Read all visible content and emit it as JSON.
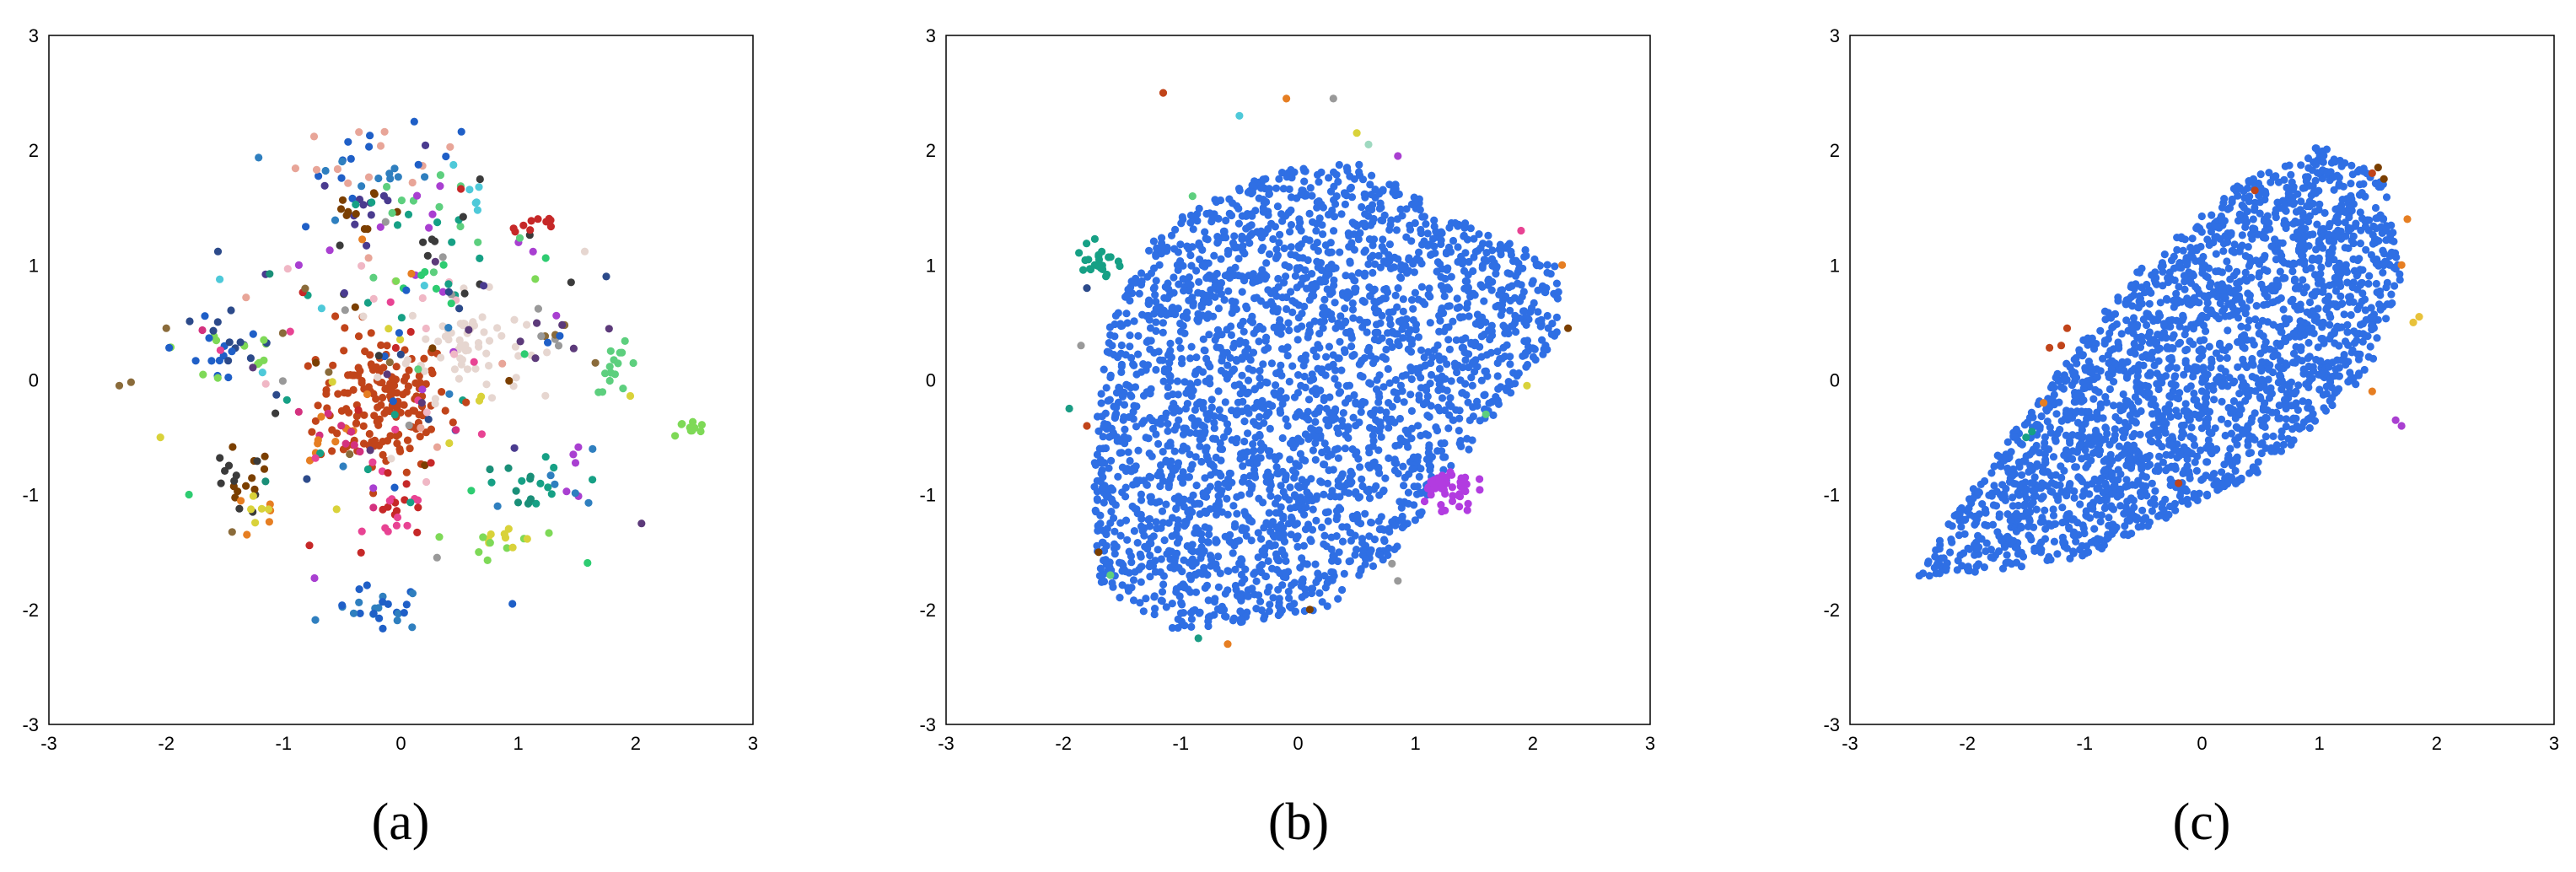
{
  "chart_data": [
    {
      "type": "scatter",
      "caption": "(a)",
      "xlim": [
        -3,
        3
      ],
      "ylim": [
        -3,
        3
      ],
      "xticks": [
        "-3",
        "-2",
        "-1",
        "0",
        "1",
        "2",
        "3"
      ],
      "yticks": [
        "-3",
        "-2",
        "-1",
        "0",
        "1",
        "2",
        "3"
      ],
      "grid": false,
      "legend": false,
      "colors": [
        "#c1441a",
        "#e8a598",
        "#4a3b8f",
        "#1f5fc7",
        "#2f7fbf",
        "#1a8f78",
        "#16a085",
        "#5dcf7e",
        "#7ed957",
        "#d9d23a",
        "#e67e22",
        "#d4317f",
        "#e84393",
        "#a93fd1",
        "#7b3f00",
        "#3b3b3b",
        "#2c4a8a",
        "#4ec9d9",
        "#e6d6d0",
        "#8a6b3a",
        "#999999",
        "#f0b7c5",
        "#2ecc71",
        "#c62828",
        "#5c3a7a"
      ],
      "clusters": [
        {
          "name": "",
          "cx": -0.15,
          "cy": -0.2,
          "sx": 0.28,
          "sy": 0.3,
          "n": 170,
          "color_idx": [
            0
          ]
        },
        {
          "name": "",
          "cx": 0.55,
          "cy": 0.3,
          "sx": 0.25,
          "sy": 0.22,
          "n": 60,
          "color_idx": [
            18
          ]
        },
        {
          "name": "",
          "cx": -0.2,
          "cy": 1.9,
          "sx": 0.35,
          "sy": 0.15,
          "n": 35,
          "color_idx": [
            1,
            3,
            4
          ]
        },
        {
          "name": "",
          "cx": -0.3,
          "cy": 1.5,
          "sx": 0.2,
          "sy": 0.15,
          "n": 20,
          "color_idx": [
            2,
            14
          ]
        },
        {
          "name": "",
          "cx": 0.2,
          "cy": 1.2,
          "sx": 0.5,
          "sy": 0.25,
          "n": 45,
          "color_idx": [
            6,
            13,
            15,
            7
          ]
        },
        {
          "name": "",
          "cx": 1.15,
          "cy": 1.35,
          "sx": 0.12,
          "sy": 0.05,
          "n": 10,
          "color_idx": [
            23
          ]
        },
        {
          "name": "",
          "cx": -1.45,
          "cy": 0.3,
          "sx": 0.25,
          "sy": 0.25,
          "n": 35,
          "color_idx": [
            16,
            3,
            8
          ]
        },
        {
          "name": "",
          "cx": -1.4,
          "cy": -0.9,
          "sx": 0.15,
          "sy": 0.15,
          "n": 20,
          "color_idx": [
            15,
            14
          ]
        },
        {
          "name": "",
          "cx": -1.2,
          "cy": -1.2,
          "sx": 0.12,
          "sy": 0.1,
          "n": 10,
          "color_idx": [
            9,
            10
          ]
        },
        {
          "name": "",
          "cx": -0.2,
          "cy": -2.0,
          "sx": 0.2,
          "sy": 0.1,
          "n": 25,
          "color_idx": [
            3,
            4
          ]
        },
        {
          "name": "",
          "cx": 0.0,
          "cy": -1.2,
          "sx": 0.15,
          "sy": 0.12,
          "n": 20,
          "color_idx": [
            23,
            12
          ]
        },
        {
          "name": "",
          "cx": 0.9,
          "cy": -1.4,
          "sx": 0.15,
          "sy": 0.1,
          "n": 15,
          "color_idx": [
            9,
            8
          ]
        },
        {
          "name": "",
          "cx": 1.1,
          "cy": -0.9,
          "sx": 0.12,
          "sy": 0.12,
          "n": 15,
          "color_idx": [
            5,
            6
          ]
        },
        {
          "name": "",
          "cx": 1.5,
          "cy": -0.8,
          "sx": 0.1,
          "sy": 0.15,
          "n": 10,
          "color_idx": [
            4,
            13
          ]
        },
        {
          "name": "",
          "cx": 1.85,
          "cy": 0.1,
          "sx": 0.1,
          "sy": 0.1,
          "n": 15,
          "color_idx": [
            7
          ]
        },
        {
          "name": "",
          "cx": 2.45,
          "cy": -0.42,
          "sx": 0.08,
          "sy": 0.05,
          "n": 10,
          "color_idx": [
            8
          ]
        },
        {
          "name": "",
          "cx": 0.65,
          "cy": 1.6,
          "sx": 0.05,
          "sy": 0.05,
          "n": 5,
          "color_idx": [
            17
          ]
        },
        {
          "name": "",
          "cx": 0.3,
          "cy": 0.85,
          "sx": 0.15,
          "sy": 0.1,
          "n": 10,
          "color_idx": [
            21,
            22
          ]
        },
        {
          "name": "",
          "cx": 1.3,
          "cy": 0.35,
          "sx": 0.15,
          "sy": 0.12,
          "n": 12,
          "color_idx": [
            20,
            19,
            24
          ]
        },
        {
          "name": "",
          "cx": -0.6,
          "cy": -0.5,
          "sx": 0.15,
          "sy": 0.12,
          "n": 15,
          "color_idx": [
            10,
            11
          ]
        }
      ],
      "scatter_extra": [
        {
          "x": -2.4,
          "y": -0.05,
          "c": 19
        },
        {
          "x": -2.3,
          "y": -0.02,
          "c": 19
        },
        {
          "x": -2.05,
          "y": -0.5,
          "c": 9
        },
        {
          "x": -2.0,
          "y": 0.45,
          "c": 19
        },
        {
          "x": 2.05,
          "y": -1.25,
          "c": 24
        },
        {
          "x": 0.95,
          "y": -1.95,
          "c": 3
        },
        {
          "x": 1.75,
          "y": 0.9,
          "c": 16
        },
        {
          "x": 1.45,
          "y": 0.85,
          "c": 15
        }
      ]
    },
    {
      "type": "scatter",
      "caption": "(b)",
      "xlim": [
        -3,
        3
      ],
      "ylim": [
        -3,
        3
      ],
      "xticks": [
        "-3",
        "-2",
        "-1",
        "0",
        "1",
        "2",
        "3"
      ],
      "yticks": [
        "-3",
        "-2",
        "-1",
        "0",
        "1",
        "2",
        "3"
      ],
      "grid": false,
      "legend": false,
      "main_color": "#2f6fe4",
      "main_region": [
        [
          -1.7,
          -1.8
        ],
        [
          -1.0,
          -2.2
        ],
        [
          0.3,
          -2.0
        ],
        [
          0.9,
          -1.4
        ],
        [
          1.6,
          -0.4
        ],
        [
          2.25,
          0.4
        ],
        [
          2.2,
          1.0
        ],
        [
          1.4,
          1.4
        ],
        [
          0.5,
          1.9
        ],
        [
          -0.3,
          1.8
        ],
        [
          -1.2,
          1.3
        ],
        [
          -1.6,
          0.5
        ],
        [
          -1.75,
          -0.6
        ]
      ],
      "main_n": 2600,
      "colors": [
        "#1a9c84",
        "#c1441a",
        "#e67e22",
        "#a93fd1",
        "#7b3f00",
        "#5dcf7e",
        "#999999",
        "#d9d23a",
        "#e84393",
        "#2c4a8a",
        "#9fd9c0",
        "#4ec9d9"
      ],
      "purple_blob": {
        "cx": 1.25,
        "cy": -0.95,
        "sx": 0.12,
        "sy": 0.1,
        "n": 45,
        "color": "#b23ce0"
      },
      "teal_blob": {
        "cx": -1.7,
        "cy": 1.05,
        "sx": 0.07,
        "sy": 0.1,
        "n": 25,
        "color": "#16a085"
      },
      "outliers": [
        {
          "x": -0.1,
          "y": 2.45,
          "c": 2
        },
        {
          "x": 0.3,
          "y": 2.45,
          "c": 6
        },
        {
          "x": -1.15,
          "y": 2.5,
          "c": 1
        },
        {
          "x": 0.6,
          "y": 2.05,
          "c": 10
        },
        {
          "x": 0.85,
          "y": 1.95,
          "c": 3
        },
        {
          "x": -0.9,
          "y": 1.6,
          "c": 5
        },
        {
          "x": -1.8,
          "y": 0.8,
          "c": 9
        },
        {
          "x": -1.85,
          "y": 0.3,
          "c": 6
        },
        {
          "x": -1.95,
          "y": -0.25,
          "c": 0
        },
        {
          "x": -1.8,
          "y": -0.4,
          "c": 1
        },
        {
          "x": -1.7,
          "y": -1.5,
          "c": 4
        },
        {
          "x": -1.6,
          "y": -1.7,
          "c": 5
        },
        {
          "x": -0.85,
          "y": -2.25,
          "c": 0
        },
        {
          "x": -0.6,
          "y": -2.3,
          "c": 2
        },
        {
          "x": 0.1,
          "y": -2.0,
          "c": 4
        },
        {
          "x": 0.8,
          "y": -1.6,
          "c": 6
        },
        {
          "x": 0.85,
          "y": -1.75,
          "c": 6
        },
        {
          "x": 1.6,
          "y": -0.3,
          "c": 5
        },
        {
          "x": 1.95,
          "y": -0.05,
          "c": 7
        },
        {
          "x": 2.3,
          "y": 0.45,
          "c": 4
        },
        {
          "x": 1.9,
          "y": 1.3,
          "c": 8
        },
        {
          "x": 2.25,
          "y": 1.0,
          "c": 2
        },
        {
          "x": 0.5,
          "y": 2.15,
          "c": 7
        },
        {
          "x": -0.5,
          "y": 2.3,
          "c": 11
        }
      ]
    },
    {
      "type": "scatter",
      "caption": "(c)",
      "xlim": [
        -3,
        3
      ],
      "ylim": [
        -3,
        3
      ],
      "xticks": [
        "-3",
        "-2",
        "-1",
        "0",
        "1",
        "2",
        "3"
      ],
      "yticks": [
        "-3",
        "-2",
        "-1",
        "0",
        "1",
        "2",
        "3"
      ],
      "grid": false,
      "legend": false,
      "main_color": "#2f6fe4",
      "main_region": [
        [
          -2.45,
          -1.75
        ],
        [
          -1.0,
          -1.55
        ],
        [
          0.5,
          -0.8
        ],
        [
          1.4,
          0.0
        ],
        [
          1.7,
          0.9
        ],
        [
          1.55,
          1.75
        ],
        [
          1.0,
          2.05
        ],
        [
          0.3,
          1.7
        ],
        [
          -0.6,
          0.9
        ],
        [
          -1.5,
          -0.3
        ],
        [
          -2.2,
          -1.3
        ]
      ],
      "main_n": 2300,
      "colors": [
        "#c1441a",
        "#e67e22",
        "#a93fd1",
        "#7b3f00",
        "#16a085",
        "#e8c23a"
      ],
      "outliers": [
        {
          "x": 1.5,
          "y": 1.85,
          "c": 3
        },
        {
          "x": 1.55,
          "y": 1.75,
          "c": 3
        },
        {
          "x": 1.45,
          "y": 1.8,
          "c": 0
        },
        {
          "x": 1.75,
          "y": 1.4,
          "c": 1
        },
        {
          "x": 1.7,
          "y": 1.0,
          "c": 1
        },
        {
          "x": 1.85,
          "y": 0.55,
          "c": 5
        },
        {
          "x": 1.8,
          "y": 0.5,
          "c": 5
        },
        {
          "x": 1.65,
          "y": -0.35,
          "c": 2
        },
        {
          "x": 1.7,
          "y": -0.4,
          "c": 2
        },
        {
          "x": -1.2,
          "y": 0.3,
          "c": 0
        },
        {
          "x": -1.3,
          "y": 0.28,
          "c": 0
        },
        {
          "x": -1.45,
          "y": -0.45,
          "c": 4
        },
        {
          "x": -1.5,
          "y": -0.5,
          "c": 4
        },
        {
          "x": -1.35,
          "y": -0.2,
          "c": 1
        },
        {
          "x": 1.45,
          "y": -0.1,
          "c": 1
        },
        {
          "x": -0.2,
          "y": -0.9,
          "c": 0
        },
        {
          "x": -1.15,
          "y": 0.45,
          "c": 0
        },
        {
          "x": 0.45,
          "y": 1.65,
          "c": 0
        }
      ]
    }
  ]
}
